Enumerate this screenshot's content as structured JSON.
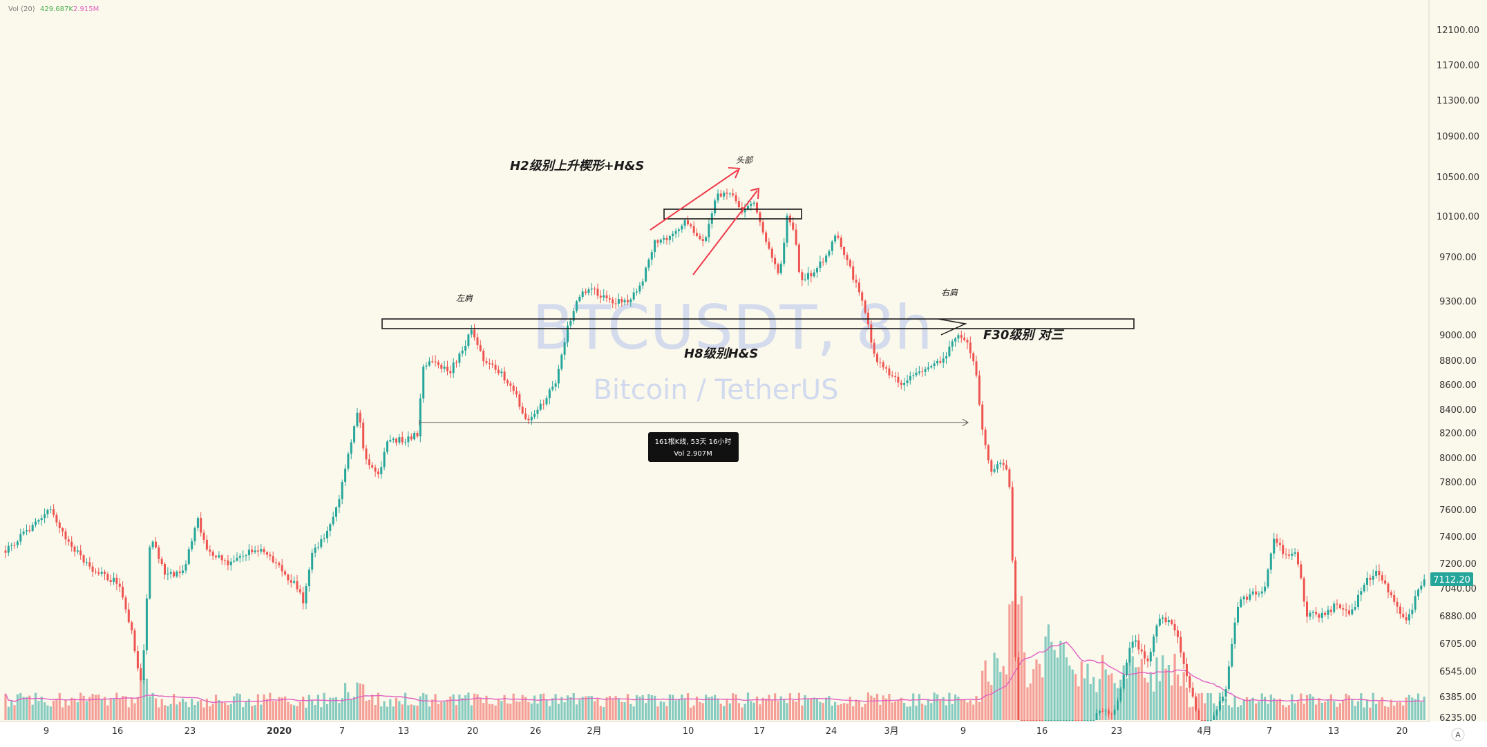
{
  "indicator": {
    "label": "Vol (20)",
    "value1": "429.687K",
    "value2": "2.915M"
  },
  "watermark": {
    "symbol": "BTCUSDT, 8h",
    "name": "Bitcoin / TetherUS"
  },
  "colors": {
    "background": "#fbf8ec",
    "up": "#26a69a",
    "down": "#ef5350",
    "ma": "#e060c0",
    "accent": "#ef3a4a",
    "price_tag": "#26a69a"
  },
  "current_price": "7112.20",
  "annotations": {
    "h2": "H2级别上升楔形+H&S",
    "head": "头部",
    "left_shoulder": "左肩",
    "right_shoulder": "右肩",
    "h8": "H8级别H&S",
    "f30": "F30级别 对三"
  },
  "measure": {
    "line1": "161根K线, 53天 16小时",
    "line2": "Vol 2.907M"
  },
  "corner_button": "A",
  "chart_data": {
    "type": "candlestick",
    "title": "BTCUSDT, 8h",
    "subtitle": "Bitcoin / TetherUS",
    "y_ticks": [
      "12100.00",
      "11700.00",
      "11300.00",
      "10900.00",
      "10500.00",
      "10100.00",
      "9700.00",
      "9300.00",
      "9000.00",
      "8800.00",
      "8600.00",
      "8400.00",
      "8200.00",
      "8000.00",
      "7800.00",
      "7600.00",
      "7400.00",
      "7200.00",
      "7040.00",
      "6880.00",
      "6705.00",
      "6545.00",
      "6385.00",
      "6235.00"
    ],
    "x_ticks": [
      "9",
      "16",
      "23",
      "2020",
      "7",
      "13",
      "20",
      "26",
      "2月",
      "10",
      "17",
      "24",
      "3月",
      "9",
      "16",
      "23",
      "4月",
      "7",
      "13",
      "20"
    ],
    "y_scale": "log",
    "grid": false,
    "last_price": 7112.2,
    "key_points": [
      {
        "x": "Dec 2",
        "close": 7350
      },
      {
        "x": "Dec 18",
        "low": 6450
      },
      {
        "x": "Dec 19",
        "high": 7450
      },
      {
        "x": "Jan 8",
        "high": 8450
      },
      {
        "x": "Jan 19",
        "close": 9050
      },
      {
        "x": "Jan 24",
        "low": 8280
      },
      {
        "x": "Feb 13",
        "high": 10500
      },
      {
        "x": "Feb 19",
        "low": 9350
      },
      {
        "x": "Feb 23",
        "high": 9950
      },
      {
        "x": "Feb 28",
        "low": 8500
      },
      {
        "x": "Mar 7",
        "high": 9150
      },
      {
        "x": "Mar 9",
        "low": 7800
      },
      {
        "x": "Mar 12",
        "low": 5500
      },
      {
        "x": "Mar 16",
        "low": 5000
      },
      {
        "x": "Mar 20",
        "high": 6900
      },
      {
        "x": "Apr 7",
        "high": 7450
      },
      {
        "x": "Apr 16",
        "low": 6700
      },
      {
        "x": "Apr 22",
        "close": 7112.2
      }
    ]
  }
}
